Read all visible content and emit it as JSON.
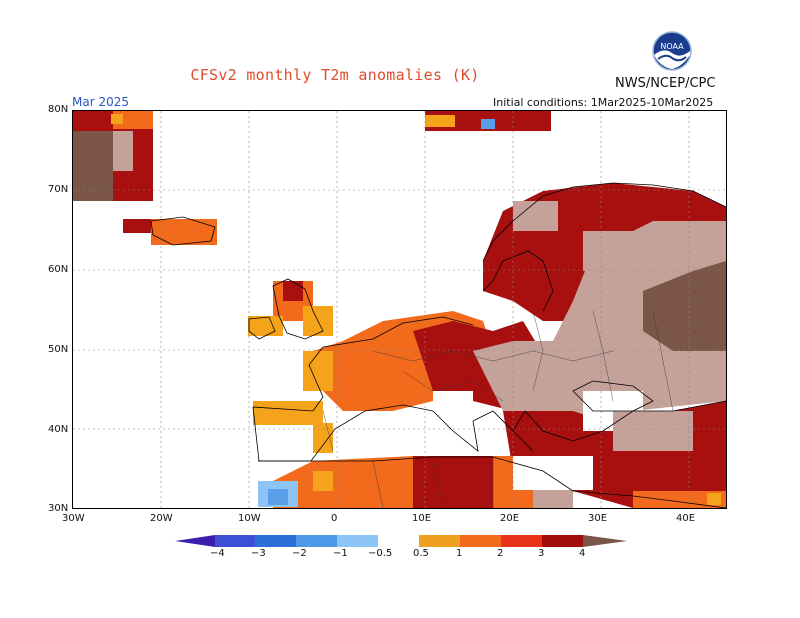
{
  "header": {
    "title": "CFSv2 monthly T2m anomalies (K)",
    "org": "NWS/NCEP/CPC",
    "month": "Mar 2025",
    "initial_conditions": "Initial conditions: 1Mar2025-10Mar2025",
    "logo_text": "NOAA"
  },
  "map": {
    "region": "Europe",
    "lat_labels": [
      "80N",
      "70N",
      "60N",
      "50N",
      "40N",
      "30N"
    ],
    "lon_labels": [
      "30W",
      "20W",
      "10W",
      "0",
      "10E",
      "20E",
      "30E",
      "40E"
    ],
    "lon_range": [
      -30,
      45
    ],
    "lat_range": [
      30,
      80
    ],
    "grid": "dotted"
  },
  "colorbar": {
    "labels": [
      "−4",
      "−3",
      "−2",
      "−1",
      "−0.5",
      "0.5",
      "1",
      "2",
      "3",
      "4"
    ],
    "colors": [
      "#3a1fb0",
      "#3d4fd6",
      "#2d6fd8",
      "#4f9ae8",
      "#8cc4f5",
      "#ffffff",
      "#f0a020",
      "#f26a1c",
      "#e8331a",
      "#a20d0d",
      "#c4a59c",
      "#7a5648"
    ]
  },
  "colors": {
    "c05_1": "#f5a31a",
    "c1_2": "#f26a1c",
    "c2_3": "#a80f0f",
    "c3_4": "#c4a29a",
    "c4plus": "#7b5548",
    "neg05": "#8cc4f5",
    "neg1": "#5a9fe8"
  }
}
